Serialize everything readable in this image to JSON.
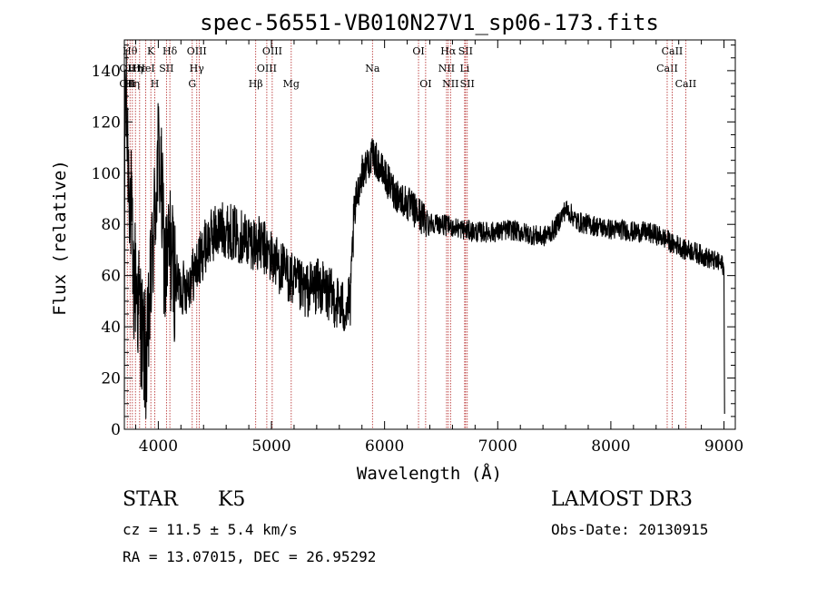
{
  "chart_data": {
    "type": "line",
    "title": "spec-56551-VB010N27V1_sp06-173.fits",
    "xlabel": "Wavelength (Å)",
    "ylabel": "Flux (relative)",
    "xlim": [
      3700,
      9100
    ],
    "ylim": [
      0,
      152
    ],
    "xticks": [
      4000,
      5000,
      6000,
      7000,
      8000,
      9000
    ],
    "xtick_labels": [
      "4000",
      "5000",
      "6000",
      "7000",
      "8000",
      "9000"
    ],
    "yticks": [
      0,
      20,
      40,
      60,
      80,
      100,
      120,
      140
    ],
    "ytick_labels": [
      "0",
      "20",
      "40",
      "60",
      "80",
      "100",
      "120",
      "140"
    ],
    "series": [
      {
        "name": "spectrum",
        "anchors": [
          [
            3700,
            10
          ],
          [
            3705,
            140
          ],
          [
            3720,
            120
          ],
          [
            3740,
            100
          ],
          [
            3760,
            85
          ],
          [
            3780,
            55
          ],
          [
            3800,
            60
          ],
          [
            3820,
            50
          ],
          [
            3840,
            45
          ],
          [
            3860,
            35
          ],
          [
            3880,
            30
          ],
          [
            3900,
            25
          ],
          [
            3920,
            45
          ],
          [
            3940,
            60
          ],
          [
            3960,
            78
          ],
          [
            3980,
            92
          ],
          [
            4000,
            108
          ],
          [
            4020,
            100
          ],
          [
            4040,
            80
          ],
          [
            4060,
            60
          ],
          [
            4080,
            65
          ],
          [
            4100,
            72
          ],
          [
            4150,
            58
          ],
          [
            4200,
            55
          ],
          [
            4250,
            56
          ],
          [
            4300,
            60
          ],
          [
            4350,
            64
          ],
          [
            4400,
            70
          ],
          [
            4450,
            74
          ],
          [
            4500,
            77
          ],
          [
            4550,
            78
          ],
          [
            4600,
            78
          ],
          [
            4650,
            77
          ],
          [
            4700,
            76
          ],
          [
            4750,
            75
          ],
          [
            4800,
            74
          ],
          [
            4850,
            73
          ],
          [
            4900,
            72
          ],
          [
            4950,
            70
          ],
          [
            5000,
            67
          ],
          [
            5050,
            65
          ],
          [
            5100,
            62
          ],
          [
            5150,
            60
          ],
          [
            5200,
            57
          ],
          [
            5250,
            55
          ],
          [
            5300,
            54
          ],
          [
            5350,
            55
          ],
          [
            5400,
            56
          ],
          [
            5450,
            55
          ],
          [
            5500,
            53
          ],
          [
            5550,
            51
          ],
          [
            5600,
            49
          ],
          [
            5650,
            47
          ],
          [
            5700,
            50
          ],
          [
            5720,
            75
          ],
          [
            5750,
            90
          ],
          [
            5800,
            100
          ],
          [
            5850,
            104
          ],
          [
            5900,
            107
          ],
          [
            5950,
            103
          ],
          [
            6000,
            99
          ],
          [
            6050,
            95
          ],
          [
            6100,
            92
          ],
          [
            6150,
            90
          ],
          [
            6200,
            88
          ],
          [
            6250,
            86
          ],
          [
            6300,
            84
          ],
          [
            6350,
            82
          ],
          [
            6400,
            81
          ],
          [
            6500,
            80
          ],
          [
            6600,
            79
          ],
          [
            6700,
            78
          ],
          [
            6800,
            77
          ],
          [
            6900,
            77
          ],
          [
            7000,
            77
          ],
          [
            7100,
            78
          ],
          [
            7200,
            77
          ],
          [
            7300,
            76
          ],
          [
            7400,
            75
          ],
          [
            7500,
            78
          ],
          [
            7600,
            86
          ],
          [
            7650,
            84
          ],
          [
            7700,
            81
          ],
          [
            7800,
            80
          ],
          [
            7900,
            79
          ],
          [
            8000,
            78
          ],
          [
            8100,
            78
          ],
          [
            8200,
            77
          ],
          [
            8300,
            77
          ],
          [
            8400,
            76
          ],
          [
            8500,
            74
          ],
          [
            8550,
            72
          ],
          [
            8600,
            72
          ],
          [
            8650,
            70
          ],
          [
            8700,
            70
          ],
          [
            8750,
            69
          ],
          [
            8800,
            68
          ],
          [
            8850,
            67
          ],
          [
            8900,
            66
          ],
          [
            8950,
            65
          ],
          [
            8990,
            64
          ],
          [
            9000,
            62
          ],
          [
            9005,
            8
          ]
        ]
      }
    ],
    "lines": [
      {
        "wl": 3726,
        "labels": [
          {
            "text": "OII",
            "row": 1
          },
          {
            "text": "OII",
            "row": 2
          }
        ]
      },
      {
        "wl": 3750,
        "labels": [
          {
            "text": "Hθ",
            "row": 0
          },
          {
            "text": "Hι",
            "row": 2
          }
        ]
      },
      {
        "wl": 3771,
        "labels": [
          {
            "text": "Hη",
            "row": 2
          }
        ]
      },
      {
        "wl": 3798,
        "labels": [
          {
            "text": "Hη",
            "row": 1
          }
        ]
      },
      {
        "wl": 3835,
        "labels": [
          {
            "text": "Hε",
            "row": 1
          }
        ]
      },
      {
        "wl": 3889,
        "labels": [
          {
            "text": "HeI",
            "row": 1
          }
        ]
      },
      {
        "wl": 3934,
        "labels": [
          {
            "text": "K",
            "row": 0
          }
        ]
      },
      {
        "wl": 3969,
        "labels": [
          {
            "text": "H",
            "row": 2
          }
        ]
      },
      {
        "wl": 4072,
        "labels": [
          {
            "text": "SII",
            "row": 1
          }
        ]
      },
      {
        "wl": 4102,
        "labels": [
          {
            "text": "Hδ",
            "row": 0
          }
        ]
      },
      {
        "wl": 4300,
        "labels": [
          {
            "text": "G",
            "row": 2
          }
        ]
      },
      {
        "wl": 4340,
        "labels": [
          {
            "text": "OIII",
            "row": 0
          },
          {
            "text": "Hγ",
            "row": 1
          }
        ]
      },
      {
        "wl": 4363,
        "labels": []
      },
      {
        "wl": 4861,
        "labels": [
          {
            "text": "Hβ",
            "row": 2
          }
        ]
      },
      {
        "wl": 4959,
        "labels": [
          {
            "text": "OIII",
            "row": 1
          }
        ]
      },
      {
        "wl": 5007,
        "labels": [
          {
            "text": "OIII",
            "row": 0
          }
        ]
      },
      {
        "wl": 5175,
        "labels": [
          {
            "text": "Mg",
            "row": 2
          }
        ]
      },
      {
        "wl": 5893,
        "labels": [
          {
            "text": "Na",
            "row": 1
          }
        ]
      },
      {
        "wl": 6300,
        "labels": [
          {
            "text": "OI",
            "row": 0
          }
        ]
      },
      {
        "wl": 6363,
        "labels": [
          {
            "text": "OI",
            "row": 2
          }
        ]
      },
      {
        "wl": 6548,
        "labels": [
          {
            "text": "NII",
            "row": 1
          }
        ]
      },
      {
        "wl": 6563,
        "labels": [
          {
            "text": "Hα",
            "row": 0
          }
        ]
      },
      {
        "wl": 6583,
        "labels": [
          {
            "text": "NII",
            "row": 2
          }
        ]
      },
      {
        "wl": 6708,
        "labels": [
          {
            "text": "Li",
            "row": 1
          }
        ]
      },
      {
        "wl": 6716,
        "labels": [
          {
            "text": "SII",
            "row": 0
          }
        ]
      },
      {
        "wl": 6731,
        "labels": [
          {
            "text": "SII",
            "row": 2
          }
        ]
      },
      {
        "wl": 8498,
        "labels": [
          {
            "text": "CaII",
            "row": 1
          }
        ]
      },
      {
        "wl": 8542,
        "labels": [
          {
            "text": "CaII",
            "row": 0
          }
        ]
      },
      {
        "wl": 8662,
        "labels": [
          {
            "text": "CaII",
            "row": 2
          }
        ]
      }
    ]
  },
  "info": {
    "object_class": "STAR",
    "subclass": "K5",
    "survey": "LAMOST DR3",
    "redshift_text": "cz = 11.5 ± 5.4 km/s",
    "obs_date": "Obs-Date: 20130915",
    "coords": "RA =  13.07015, DEC =  26.95292"
  }
}
